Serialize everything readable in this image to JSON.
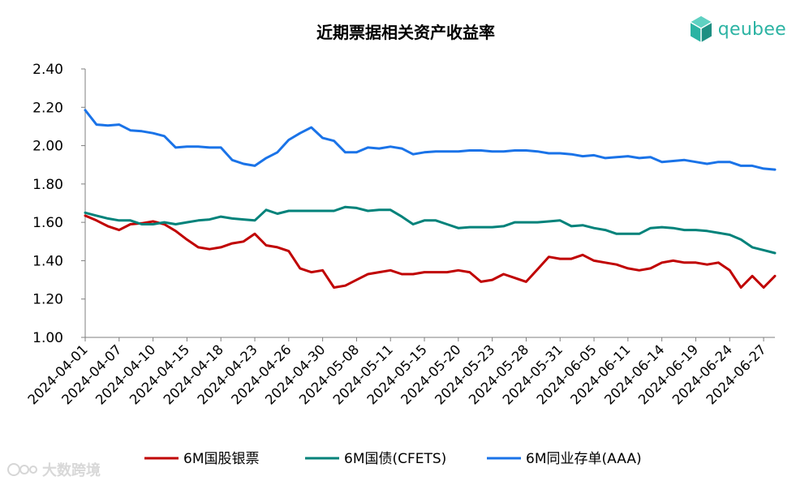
{
  "logo_text": "qeubee",
  "watermark_text": "大数跨境",
  "colors": {
    "series_1": "#C00000",
    "series_2": "#00827A",
    "series_3": "#1A73E8",
    "axis": "#7f7f7f",
    "logo": "#2bb3a3"
  },
  "chart_data": {
    "type": "line",
    "title": "近期票据相关资产收益率",
    "xlabel": "",
    "ylabel": "",
    "ylim": [
      1.0,
      2.4
    ],
    "y_ticks": [
      "1.00",
      "1.20",
      "1.40",
      "1.60",
      "1.80",
      "2.00",
      "2.20",
      "2.40"
    ],
    "grid": false,
    "legend_position": "bottom",
    "x_tick_labels": [
      "2024-04-01",
      "2024-04-07",
      "2024-04-10",
      "2024-04-15",
      "2024-04-18",
      "2024-04-23",
      "2024-04-26",
      "2024-04-30",
      "2024-05-08",
      "2024-05-11",
      "2024-05-15",
      "2024-05-20",
      "2024-05-23",
      "2024-05-28",
      "2024-05-31",
      "2024-06-05",
      "2024-06-11",
      "2024-06-14",
      "2024-06-19",
      "2024-06-24",
      "2024-06-27"
    ],
    "x": [
      "2024-04-01",
      "2024-04-02",
      "2024-04-03",
      "2024-04-07",
      "2024-04-08",
      "2024-04-09",
      "2024-04-10",
      "2024-04-11",
      "2024-04-12",
      "2024-04-15",
      "2024-04-16",
      "2024-04-17",
      "2024-04-18",
      "2024-04-19",
      "2024-04-22",
      "2024-04-23",
      "2024-04-24",
      "2024-04-25",
      "2024-04-26",
      "2024-04-28",
      "2024-04-29",
      "2024-04-30",
      "2024-05-06",
      "2024-05-07",
      "2024-05-08",
      "2024-05-09",
      "2024-05-10",
      "2024-05-11",
      "2024-05-13",
      "2024-05-14",
      "2024-05-15",
      "2024-05-16",
      "2024-05-17",
      "2024-05-20",
      "2024-05-21",
      "2024-05-22",
      "2024-05-23",
      "2024-05-24",
      "2024-05-27",
      "2024-05-28",
      "2024-05-29",
      "2024-05-30",
      "2024-05-31",
      "2024-06-03",
      "2024-06-04",
      "2024-06-05",
      "2024-06-06",
      "2024-06-07",
      "2024-06-11",
      "2024-06-12",
      "2024-06-13",
      "2024-06-14",
      "2024-06-17",
      "2024-06-18",
      "2024-06-19",
      "2024-06-20",
      "2024-06-21",
      "2024-06-24",
      "2024-06-25",
      "2024-06-26",
      "2024-06-27",
      "2024-06-28"
    ],
    "series": [
      {
        "name": "6M国股银票",
        "color": "#C00000",
        "values": [
          1.635,
          1.61,
          1.58,
          1.56,
          1.59,
          1.595,
          1.605,
          1.59,
          1.555,
          1.51,
          1.47,
          1.46,
          1.47,
          1.49,
          1.5,
          1.54,
          1.48,
          1.47,
          1.45,
          1.36,
          1.34,
          1.35,
          1.26,
          1.27,
          1.3,
          1.33,
          1.34,
          1.35,
          1.33,
          1.33,
          1.34,
          1.34,
          1.34,
          1.35,
          1.34,
          1.29,
          1.3,
          1.33,
          1.31,
          1.29,
          1.355,
          1.42,
          1.41,
          1.41,
          1.43,
          1.4,
          1.39,
          1.38,
          1.36,
          1.35,
          1.36,
          1.39,
          1.4,
          1.39,
          1.39,
          1.38,
          1.39,
          1.35,
          1.26,
          1.32,
          1.26,
          1.32
        ]
      },
      {
        "name": "6M国债(CFETS)",
        "color": "#00827A",
        "values": [
          1.65,
          1.635,
          1.62,
          1.61,
          1.61,
          1.59,
          1.59,
          1.6,
          1.59,
          1.6,
          1.61,
          1.615,
          1.63,
          1.62,
          1.615,
          1.61,
          1.665,
          1.645,
          1.66,
          1.66,
          1.66,
          1.66,
          1.66,
          1.68,
          1.675,
          1.66,
          1.665,
          1.665,
          1.63,
          1.59,
          1.61,
          1.61,
          1.59,
          1.57,
          1.575,
          1.575,
          1.575,
          1.58,
          1.6,
          1.6,
          1.6,
          1.605,
          1.61,
          1.58,
          1.585,
          1.57,
          1.56,
          1.54,
          1.54,
          1.54,
          1.57,
          1.575,
          1.57,
          1.56,
          1.56,
          1.555,
          1.545,
          1.535,
          1.51,
          1.47,
          1.455,
          1.44
        ]
      },
      {
        "name": "6M同业存单(AAA)",
        "color": "#1A73E8",
        "values": [
          2.185,
          2.11,
          2.105,
          2.11,
          2.08,
          2.075,
          2.065,
          2.05,
          1.99,
          1.995,
          1.995,
          1.99,
          1.99,
          1.925,
          1.905,
          1.895,
          1.935,
          1.965,
          2.03,
          2.065,
          2.095,
          2.04,
          2.025,
          1.965,
          1.965,
          1.99,
          1.985,
          1.995,
          1.985,
          1.955,
          1.965,
          1.97,
          1.97,
          1.97,
          1.975,
          1.975,
          1.97,
          1.97,
          1.975,
          1.975,
          1.97,
          1.96,
          1.96,
          1.955,
          1.945,
          1.95,
          1.935,
          1.94,
          1.945,
          1.935,
          1.94,
          1.915,
          1.92,
          1.925,
          1.915,
          1.905,
          1.915,
          1.915,
          1.895,
          1.895,
          1.88,
          1.875
        ]
      }
    ]
  }
}
